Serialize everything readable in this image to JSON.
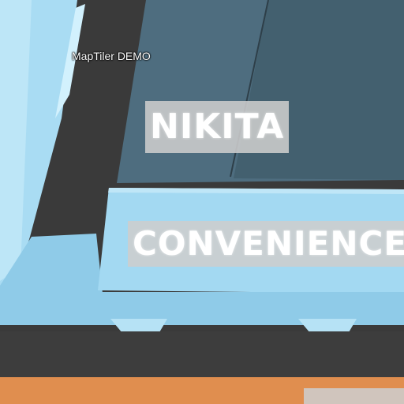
{
  "map": {
    "watermark": "MapTiler DEMO",
    "labels": {
      "nikita": "NIKITA",
      "convenience": "CONVENIENCE",
      "partial": ""
    },
    "colors": {
      "background": "#3a3a3a",
      "store_roof": "#4e6d7f",
      "store_side": "#3e5868",
      "building_light": "#a9dcf3",
      "building_highlight": "#cdeffc",
      "corridor": "#8fcbe8",
      "road": "#3d3d3d",
      "orange_area": "#e08e4f",
      "label_box": "#cdcdcd"
    },
    "icons": [
      "store-roof-shape",
      "building-shape",
      "road-shape"
    ]
  }
}
